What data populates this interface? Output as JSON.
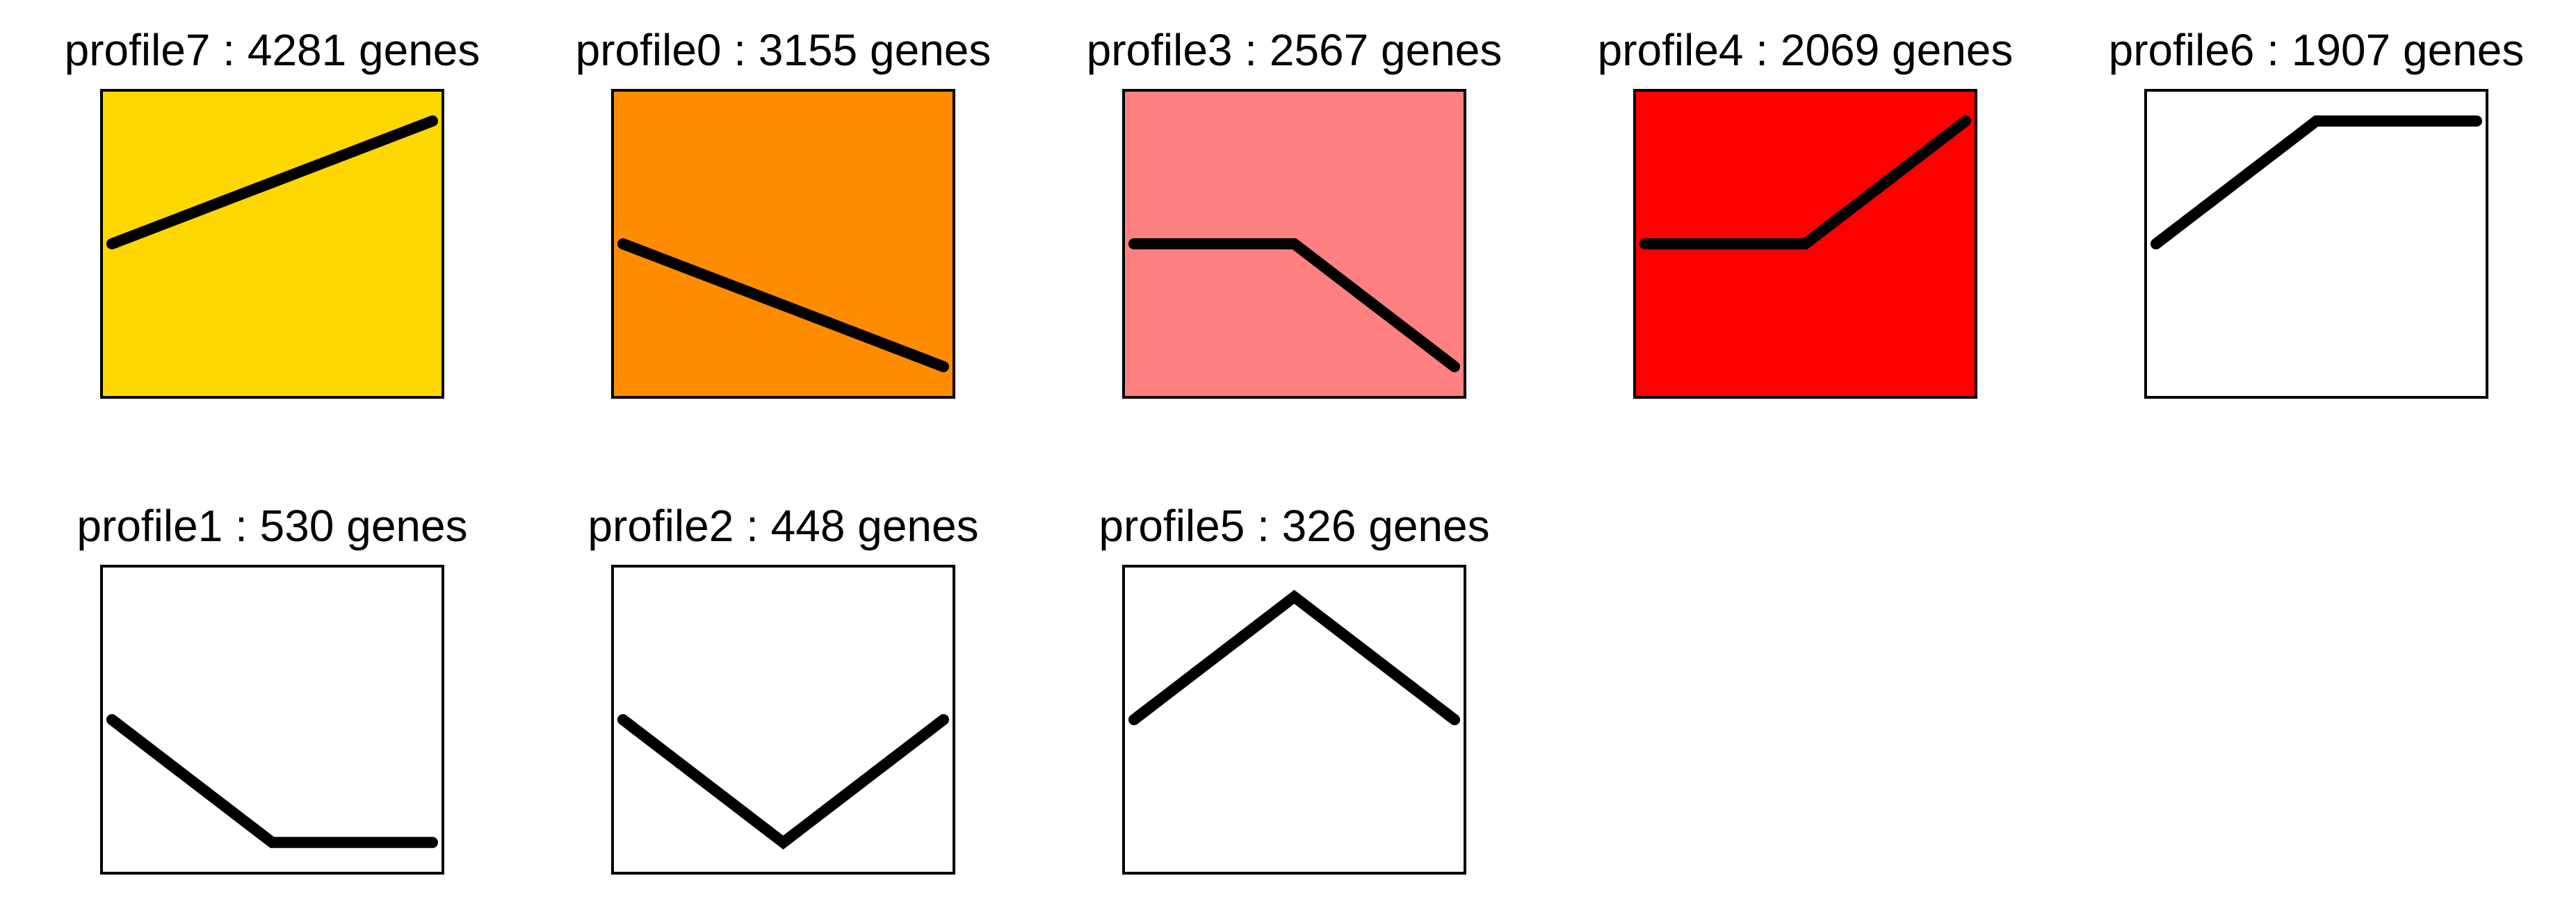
{
  "chart_data": [
    {
      "type": "line",
      "title": "profile7 : 4281 genes",
      "x": [
        0,
        1,
        2
      ],
      "values": [
        0,
        1,
        2
      ],
      "xlim": [
        -0.065,
        2.065
      ],
      "ylim": [
        -2.5,
        2.5
      ],
      "background": "#FFD700",
      "color": "#000000"
    },
    {
      "type": "line",
      "title": "profile0 : 3155 genes",
      "x": [
        0,
        1,
        2
      ],
      "values": [
        0,
        -1,
        -2
      ],
      "xlim": [
        -0.065,
        2.065
      ],
      "ylim": [
        -2.5,
        2.5
      ],
      "background": "#FF8C00",
      "color": "#000000"
    },
    {
      "type": "line",
      "title": "profile3 : 2567 genes",
      "x": [
        0,
        1,
        2
      ],
      "values": [
        0,
        0,
        -1
      ],
      "xlim": [
        -0.065,
        2.065
      ],
      "ylim": [
        -1.25,
        1.25
      ],
      "background": "#FF8080",
      "color": "#000000"
    },
    {
      "type": "line",
      "title": "profile4 : 2069 genes",
      "x": [
        0,
        1,
        2
      ],
      "values": [
        0,
        0,
        1
      ],
      "xlim": [
        -0.065,
        2.065
      ],
      "ylim": [
        -1.25,
        1.25
      ],
      "background": "#FF0000",
      "color": "#000000"
    },
    {
      "type": "line",
      "title": "profile6 : 1907 genes",
      "x": [
        0,
        1,
        2
      ],
      "values": [
        0,
        1,
        1
      ],
      "xlim": [
        -0.065,
        2.065
      ],
      "ylim": [
        -1.25,
        1.25
      ],
      "background": "#FFFFFF",
      "color": "#000000"
    },
    {
      "type": "line",
      "title": "profile1 : 530 genes",
      "x": [
        0,
        1,
        2
      ],
      "values": [
        0,
        -1,
        -1
      ],
      "xlim": [
        -0.065,
        2.065
      ],
      "ylim": [
        -1.25,
        1.25
      ],
      "background": "#FFFFFF",
      "color": "#000000"
    },
    {
      "type": "line",
      "title": "profile2 : 448 genes",
      "x": [
        0,
        1,
        2
      ],
      "values": [
        0,
        -1,
        0
      ],
      "xlim": [
        -0.065,
        2.065
      ],
      "ylim": [
        -1.25,
        1.25
      ],
      "background": "#FFFFFF",
      "color": "#000000"
    },
    {
      "type": "line",
      "title": "profile5 : 326 genes",
      "x": [
        0,
        1,
        2
      ],
      "values": [
        0,
        1,
        0
      ],
      "xlim": [
        -0.065,
        2.065
      ],
      "ylim": [
        -1.25,
        1.25
      ],
      "background": "#FFFFFF",
      "color": "#000000"
    }
  ]
}
